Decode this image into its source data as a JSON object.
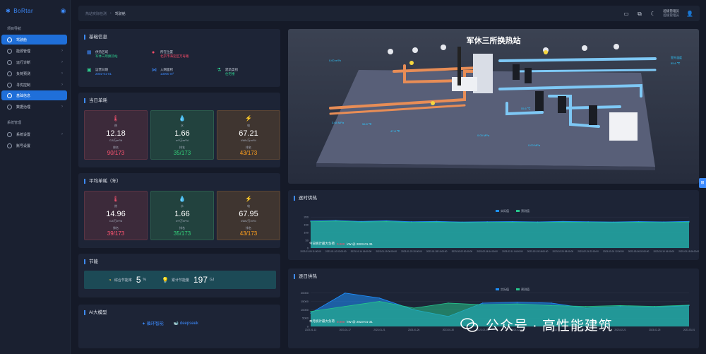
{
  "app": {
    "brand": "BoRtar",
    "breadcrumb_root": "热站实际检测",
    "breadcrumb_current": "驾驶舱"
  },
  "nav": {
    "section1": "项目导航",
    "items1": [
      {
        "label": "驾驶舱",
        "active": true
      },
      {
        "label": "能源管理"
      },
      {
        "label": "运行诊断"
      },
      {
        "label": "负荷预测"
      },
      {
        "label": "寻优控制"
      },
      {
        "label": "基础信息",
        "active": true
      },
      {
        "label": "数据治理"
      }
    ],
    "section2": "系统管理",
    "items2": [
      {
        "label": "系统设置"
      },
      {
        "label": "账号设置"
      }
    ]
  },
  "header": {
    "user_name": "超级管理员",
    "user_role": "超级管理员"
  },
  "basic": {
    "title": "基础信息",
    "cells": [
      {
        "label": "供热区域",
        "value": "军休三所换热站",
        "icon": "building-icon",
        "color": "#3d8bff"
      },
      {
        "label": "所在位置",
        "value": "北京市海淀区万寿路",
        "icon": "location-icon",
        "color": "#ff4d6a"
      },
      {
        "label": "运营日期",
        "value": "2002-01-01",
        "icon": "calendar-icon",
        "color": "#2ecf8f"
      },
      {
        "label": "入网面积",
        "value": "13000 m²",
        "icon": "share-icon",
        "color": "#3d8bff"
      },
      {
        "label": "建筑类别",
        "value": "住宅楼",
        "icon": "flask-icon",
        "color": "#2ecf8f"
      }
    ]
  },
  "daily": {
    "title": "当日单耗",
    "cards": [
      {
        "name": "热",
        "value": "12.18",
        "unit": "GJ/万m²/d",
        "rank_label": "排名",
        "rank": "90/173",
        "kind": "w"
      },
      {
        "name": "水",
        "value": "1.66",
        "unit": "m³/万m²/d",
        "rank_label": "排名",
        "rank": "35/173",
        "kind": "s"
      },
      {
        "name": "电",
        "value": "67.21",
        "unit": "kWh/万m²/d",
        "rank_label": "排名",
        "rank": "43/173",
        "kind": "e"
      }
    ]
  },
  "avg": {
    "title": "平均单耗（年）",
    "cards": [
      {
        "name": "热",
        "value": "14.96",
        "unit": "GJ/万m²/d",
        "rank_label": "排名",
        "rank": "39/173",
        "kind": "w"
      },
      {
        "name": "水",
        "value": "1.66",
        "unit": "m³/万m²/d",
        "rank_label": "排名",
        "rank": "35/173",
        "kind": "s"
      },
      {
        "name": "电",
        "value": "67.95",
        "unit": "kWh/万m²/d",
        "rank_label": "排名",
        "rank": "43/173",
        "kind": "e"
      }
    ]
  },
  "saving": {
    "title": "节能",
    "rate_label": "综合节能率",
    "rate": "5",
    "rate_unit": "%",
    "total_label": "累计节能量",
    "total": "197",
    "total_unit": "GJ"
  },
  "ai": {
    "title": "AI大模型",
    "m1": "循环智能",
    "m2": "deepseek"
  },
  "scene": {
    "title": "军休三所换热站",
    "labels": [
      "0.00 m³/h",
      "室外温度",
      "55.6 ℃",
      "3.68 MPa",
      "56.8 ℃",
      "47.8 ℃",
      "0.00 MPa",
      "0.00 MPa",
      "55.6 ℃"
    ]
  },
  "chart_data": [
    {
      "type": "area",
      "title": "逐时供热",
      "legend": [
        "实际值",
        "预测值"
      ],
      "x": [
        "2023-01-05 11:00:00",
        "2023-01-10 02:00:00",
        "2023-01-14 16:00:00",
        "2023-01-19 06:00:00",
        "2023-01-23 20:00:00",
        "2023-01-28 10:00:00",
        "2023-02-02 00:00:00",
        "2023-02-06 14:00:00",
        "2023-02-11 04:00:00",
        "2023-02-15 18:00:00",
        "2023-02-20 08:00:00",
        "2023-02-24 22:00:00",
        "2023-03-01 12:00:00",
        "2023-03-06 02:00:00",
        "2023-03-10 16:00:00",
        "2023-03-15 06:00:00"
      ],
      "yticks": [
        0,
        50,
        100,
        150,
        200
      ],
      "ylim": [
        0,
        210
      ],
      "series": [
        {
          "name": "实际值",
          "values": [
            175,
            178,
            172,
            176,
            170,
            172,
            168,
            170,
            171,
            169,
            172,
            170,
            168,
            171,
            169,
            172
          ]
        },
        {
          "name": "预测值",
          "values": [
            170,
            174,
            168,
            171,
            166,
            168,
            164,
            166,
            167,
            165,
            168,
            166,
            164,
            167,
            165,
            168
          ]
        }
      ],
      "annotation_label": "今日统计最大负荷",
      "annotation_mark": "0.000",
      "annotation_date": "kW @ 2023-01-31"
    },
    {
      "type": "area",
      "title": "逐日供热",
      "legend": [
        "实际值",
        "预测值"
      ],
      "x": [
        "2023-01-13",
        "2023-01-17",
        "2023-01-21",
        "2023-01-26",
        "2023-01-30",
        "2023-02-03",
        "2023-02-08",
        "2023-02-12",
        "2023-02-17",
        "2023-02-21",
        "2023-02-25",
        "2023-03-01"
      ],
      "yticks": [
        0,
        5000,
        10000,
        15000,
        20000
      ],
      "ylim": [
        0,
        22000
      ],
      "series": [
        {
          "name": "实际值",
          "values": [
            8000,
            20000,
            17000,
            10000,
            6000,
            14000,
            14500,
            14000,
            11000,
            12000,
            11500,
            12500
          ]
        },
        {
          "name": "预测值",
          "values": [
            9000,
            12000,
            15000,
            11000,
            14000,
            13000,
            13500,
            12500,
            12000,
            12500,
            12000,
            12800
          ]
        }
      ],
      "annotation_label": "本月统计最大负荷",
      "annotation_mark": "0.000",
      "annotation_date": "kW @ 2023-01-31"
    }
  ],
  "watermark": "公众号 · 高性能建筑",
  "colors": {
    "accent": "#3d8bff",
    "actual": "#1e90ff",
    "forecast": "#26c58c"
  }
}
